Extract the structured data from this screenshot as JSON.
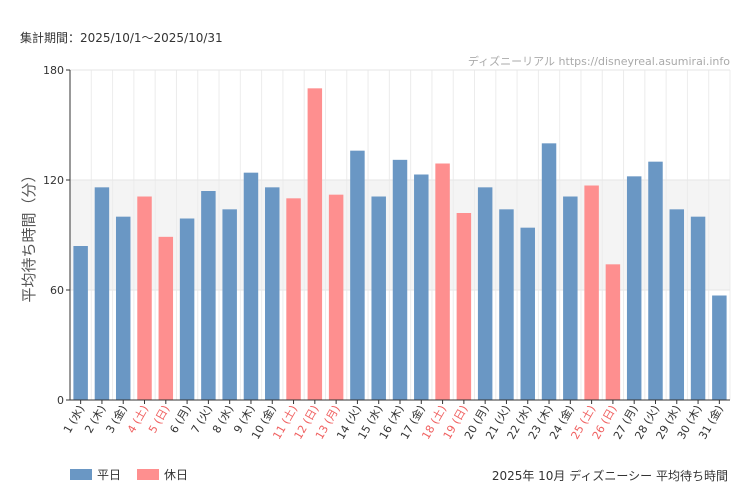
{
  "header": {
    "period": "集計期間：2025/10/1〜2025/10/31",
    "credit": "ディズニーリアル https://disneyreal.asumirai.info"
  },
  "footer": {
    "title": "2025年 10月 ディズニーシー 平均待ち時間"
  },
  "legend": [
    {
      "label": "平日",
      "color": "#6a97c4"
    },
    {
      "label": "休日",
      "color": "#fe8f8f"
    }
  ],
  "colors": {
    "weekday": "#6a97c4",
    "holiday": "#fe8f8f",
    "weekday_text": "#333333",
    "holiday_text": "#f06060",
    "band": "#f4f4f4",
    "grid": "#e6e6e6"
  },
  "chart_data": {
    "type": "bar",
    "title": "2025年 10月 ディズニーシー 平均待ち時間",
    "xlabel": "",
    "ylabel": "平均待ち時間（分）",
    "ylim": [
      0,
      180
    ],
    "yticks": [
      0,
      60,
      120,
      180
    ],
    "categories": [
      "1 (水)",
      "2 (木)",
      "3 (金)",
      "4 (土)",
      "5 (日)",
      "6 (月)",
      "7 (火)",
      "8 (水)",
      "9 (木)",
      "10 (金)",
      "11 (土)",
      "12 (日)",
      "13 (月)",
      "14 (火)",
      "15 (水)",
      "16 (木)",
      "17 (金)",
      "18 (土)",
      "19 (日)",
      "20 (月)",
      "21 (火)",
      "22 (水)",
      "23 (木)",
      "24 (金)",
      "25 (土)",
      "26 (日)",
      "27 (月)",
      "28 (火)",
      "29 (水)",
      "30 (木)",
      "31 (金)"
    ],
    "values": [
      84,
      116,
      100,
      111,
      89,
      99,
      114,
      104,
      124,
      116,
      110,
      170,
      112,
      136,
      111,
      131,
      123,
      129,
      102,
      116,
      104,
      94,
      140,
      111,
      117,
      74,
      122,
      130,
      104,
      100,
      57
    ],
    "day_type": [
      "weekday",
      "weekday",
      "weekday",
      "holiday",
      "holiday",
      "weekday",
      "weekday",
      "weekday",
      "weekday",
      "weekday",
      "holiday",
      "holiday",
      "holiday",
      "weekday",
      "weekday",
      "weekday",
      "weekday",
      "holiday",
      "holiday",
      "weekday",
      "weekday",
      "weekday",
      "weekday",
      "weekday",
      "holiday",
      "holiday",
      "weekday",
      "weekday",
      "weekday",
      "weekday",
      "weekday"
    ],
    "series": [
      {
        "name": "平日"
      },
      {
        "name": "休日"
      }
    ]
  }
}
